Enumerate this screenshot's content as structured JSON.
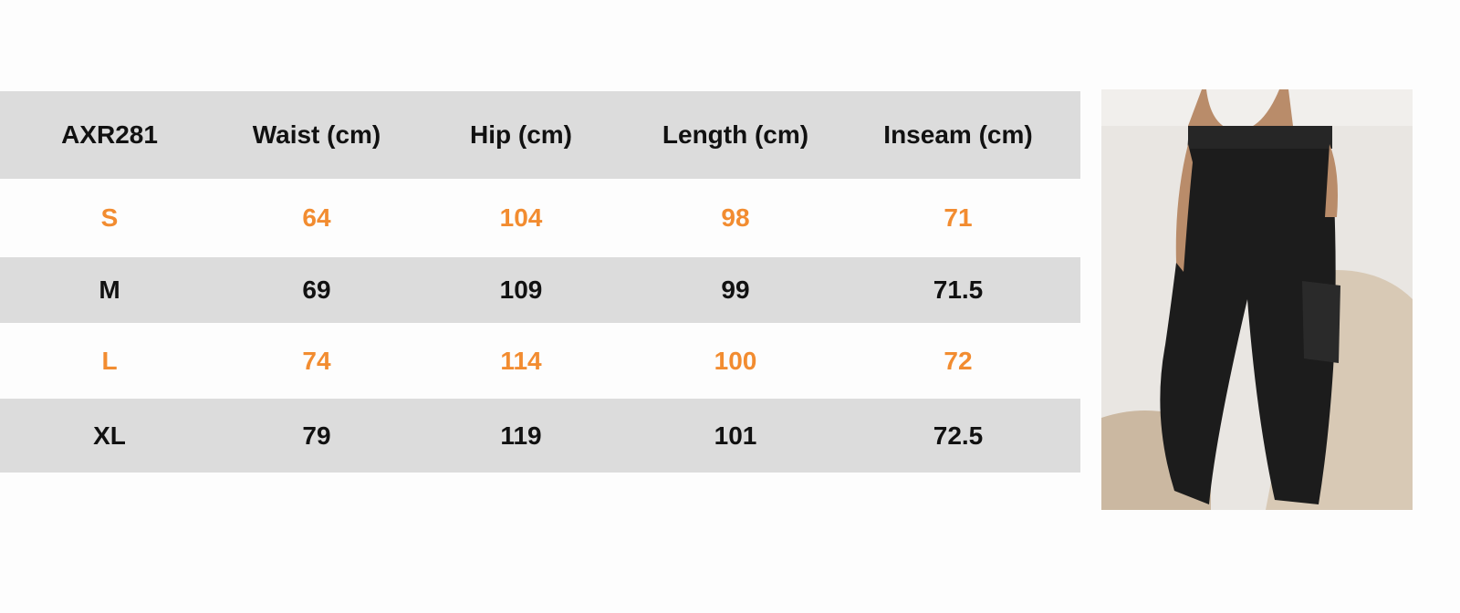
{
  "table": {
    "header": [
      "AXR281",
      "Waist (cm)",
      "Hip (cm)",
      "Length (cm)",
      "Inseam (cm)"
    ],
    "rows": [
      [
        "S",
        "64",
        "104",
        "98",
        "71"
      ],
      [
        "M",
        "69",
        "109",
        "99",
        "71.5"
      ],
      [
        "L",
        "74",
        "114",
        "100",
        "72"
      ],
      [
        "XL",
        "79",
        "119",
        "101",
        "72.5"
      ]
    ]
  }
}
